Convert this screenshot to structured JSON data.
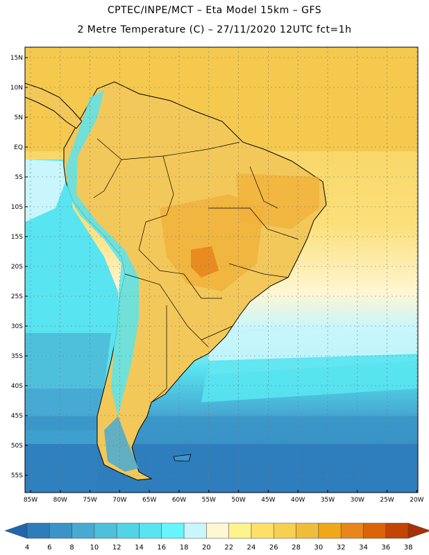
{
  "header": {
    "line1": "CPTEC/INPE/MCT –  Eta Model 15km – GFS",
    "line2": "2 Metre Temperature (C) – 27/11/2020 12UTC fct=1h"
  },
  "axes": {
    "lat_labels": [
      "15N",
      "10N",
      "5N",
      "EQ",
      "5S",
      "10S",
      "15S",
      "20S",
      "25S",
      "30S",
      "35S",
      "40S",
      "45S",
      "50S",
      "55S"
    ],
    "lon_labels": [
      "85W",
      "80W",
      "75W",
      "70W",
      "65W",
      "60W",
      "55W",
      "50W",
      "45W",
      "40W",
      "35W",
      "30W",
      "25W",
      "20W"
    ]
  },
  "colorbar": {
    "ticks": [
      "4",
      "6",
      "8",
      "10",
      "12",
      "14",
      "16",
      "18",
      "20",
      "22",
      "24",
      "26",
      "28",
      "30",
      "32",
      "34",
      "36",
      "38"
    ],
    "colors": [
      "#2166ac",
      "#2e7cbc",
      "#3a94c8",
      "#47aad3",
      "#4fc0dc",
      "#52d4e6",
      "#58e4f0",
      "#66f6fc",
      "#c8f6fc",
      "#fff6d2",
      "#fff38c",
      "#ffe066",
      "#f8d050",
      "#f0bd3a",
      "#f0a818",
      "#e8861c",
      "#dc6408",
      "#c44404",
      "#a83004"
    ]
  }
}
